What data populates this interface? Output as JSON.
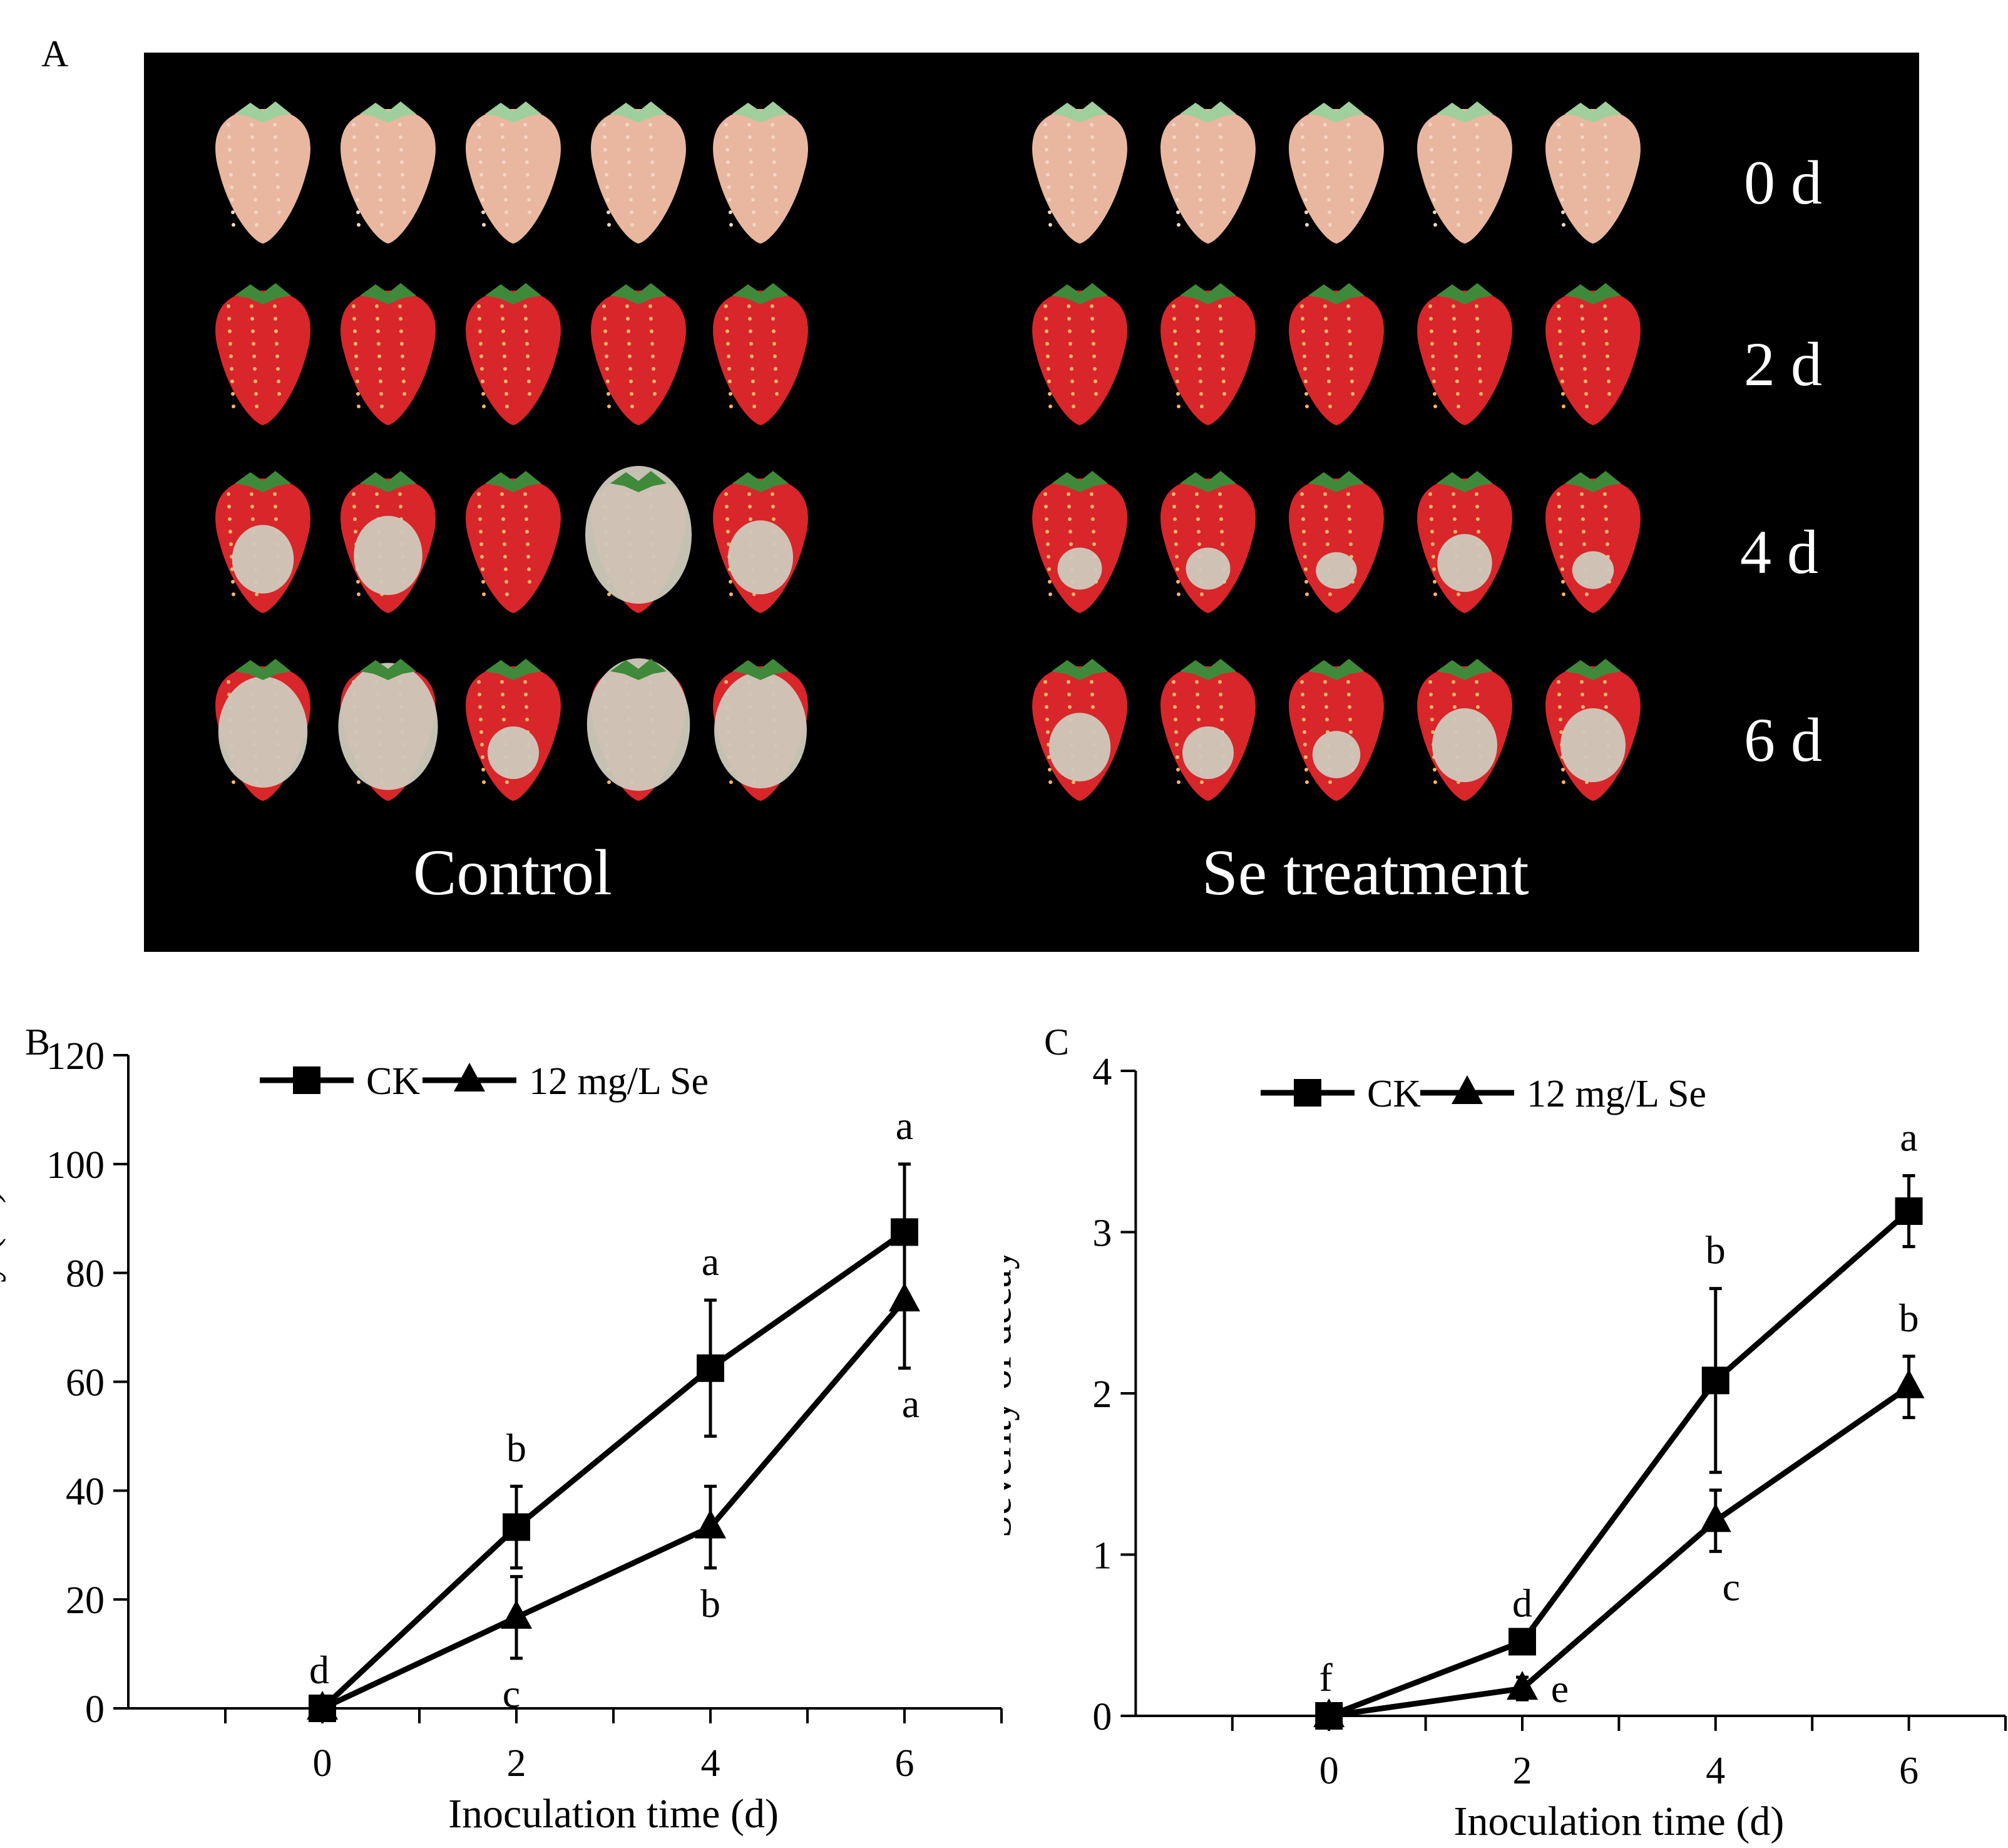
{
  "panels": {
    "a": "A",
    "b": "B",
    "c": "C"
  },
  "photo": {
    "groups": [
      "Control",
      "Se treatment"
    ],
    "days": [
      "0 d",
      "2 d",
      "4 d",
      "6 d"
    ],
    "fruit_per_group": 5
  },
  "colors": {
    "axis": "#000000",
    "photo_bg": "#000000",
    "ripe": "#d8262b",
    "unripe": "#e9b79f",
    "mold": "#cfcabc",
    "calyx": "#3f8a3a"
  },
  "chart_data": [
    {
      "type": "line",
      "panel": "B",
      "xlabel": "Inoculation time (d)",
      "ylabel": "Incidence of decay (%)",
      "x": [
        0,
        2,
        4,
        6
      ],
      "x_ticks": [
        "0",
        "2",
        "4",
        "6"
      ],
      "xlim": [
        -3,
        7.0
      ],
      "y_ticks": [
        "0",
        "20",
        "40",
        "60",
        "80",
        "100",
        "120"
      ],
      "ylim": [
        0,
        120
      ],
      "legend": "top-left",
      "series": [
        {
          "name": "CK",
          "marker": "square",
          "values": [
            0,
            33.3,
            62.5,
            87.5
          ],
          "errors": [
            0,
            7.5,
            12.5,
            12.5
          ],
          "letters": [
            "d",
            "b",
            "a",
            "a"
          ]
        },
        {
          "name": "12 mg/L Se",
          "marker": "triangle",
          "values": [
            0,
            16.7,
            33.3,
            75
          ],
          "errors": [
            0,
            7.5,
            7.5,
            12.5
          ],
          "letters": [
            "",
            "c",
            "b",
            "a"
          ]
        }
      ]
    },
    {
      "type": "line",
      "panel": "C",
      "xlabel": "Inoculation time (d)",
      "ylabel": "Severity of decay",
      "x": [
        0,
        2,
        4,
        6
      ],
      "x_ticks": [
        "0",
        "2",
        "4",
        "6"
      ],
      "xlim": [
        -3,
        7.0
      ],
      "y_ticks": [
        "0",
        "1",
        "2",
        "3",
        "4"
      ],
      "ylim": [
        0,
        4
      ],
      "legend": "top-left",
      "series": [
        {
          "name": "CK",
          "marker": "square",
          "values": [
            0,
            0.46,
            2.08,
            3.13
          ],
          "errors": [
            0,
            0,
            0.57,
            0.22
          ],
          "letters": [
            "f",
            "d",
            "b",
            "a"
          ]
        },
        {
          "name": "12 mg/L Se",
          "marker": "triangle",
          "values": [
            0,
            0.17,
            1.21,
            2.04
          ],
          "errors": [
            0,
            0.07,
            0.19,
            0.19
          ],
          "letters": [
            "",
            "e",
            "c",
            "b"
          ]
        }
      ]
    }
  ]
}
